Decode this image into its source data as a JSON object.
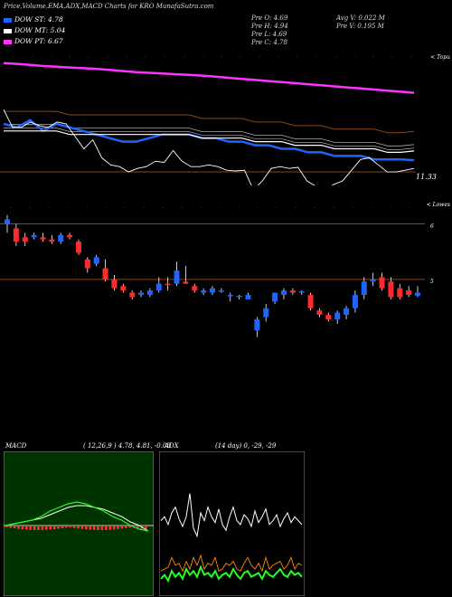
{
  "header": {
    "title": "Price,Volume,EMA,ADX,MACD Charts for KRO MunafaSutra.com",
    "ohlc": [
      "Pre O: 4.69",
      "Pre H: 4.94",
      "Pre L: 4.69",
      "Pre C: 4.78"
    ],
    "volume": [
      "Avg V: 0.022 M",
      "Pre V: 0.195 M"
    ]
  },
  "legend": [
    {
      "label": "DOW ST: 4.78",
      "color": "#1e64ff"
    },
    {
      "label": "DOW MT: 5.04",
      "color": "#ffffff"
    },
    {
      "label": "DOW PT: 6.67",
      "color": "#ff33ff"
    }
  ],
  "colors": {
    "up": "#1e64ff",
    "down": "#ff2a2a",
    "ema_short": "#1e64ff",
    "ema_mid": "#ffffff",
    "ema_long": "#ff33ff",
    "ema_extra": "#8b4513",
    "adx_green": "#22ff22",
    "adx_orange": "#ff8c00",
    "macd_bg": "#003300",
    "macd_red": "#ff3333"
  },
  "panel1": {
    "right_label": "< Topu",
    "price_label": "11.33"
  },
  "panel2": {
    "right_label": "< Lowes",
    "right_ticks": [
      "6",
      "5"
    ]
  },
  "macd": {
    "label": "MACD",
    "params": "( 12,26,9 ) 4.78, 4.81, -0.03"
  },
  "adx": {
    "label": "ADX",
    "params": "(14 day) 0, -29, -29"
  },
  "chart_data": [
    {
      "type": "line",
      "title": "EMA",
      "series": [
        {
          "name": "DOW ST",
          "values": [
            5.8,
            5.7,
            5.9,
            5.6,
            5.8,
            5.7,
            5.6,
            5.5,
            5.4,
            5.3,
            5.3,
            5.4,
            5.5,
            5.5,
            5.5,
            5.4,
            5.4,
            5.3,
            5.3,
            5.2,
            5.2,
            5.1,
            5.1,
            5.0,
            5.0,
            4.9,
            4.9,
            4.9,
            4.8,
            4.8,
            4.8,
            4.78
          ]
        },
        {
          "name": "DOW MT",
          "values": [
            5.6,
            5.6,
            5.6,
            5.6,
            5.6,
            5.5,
            5.5,
            5.5,
            5.5,
            5.5,
            5.5,
            5.5,
            5.5,
            5.5,
            5.5,
            5.4,
            5.4,
            5.4,
            5.4,
            5.3,
            5.3,
            5.3,
            5.2,
            5.2,
            5.2,
            5.1,
            5.1,
            5.1,
            5.1,
            5.0,
            5.0,
            5.04
          ]
        },
        {
          "name": "DOW PT",
          "values": [
            7.5,
            7.48,
            7.45,
            7.42,
            7.4,
            7.38,
            7.36,
            7.34,
            7.31,
            7.28,
            7.25,
            7.23,
            7.21,
            7.19,
            7.17,
            7.15,
            7.12,
            7.09,
            7.06,
            7.03,
            7.0,
            6.97,
            6.94,
            6.91,
            6.88,
            6.85,
            6.82,
            6.79,
            6.76,
            6.73,
            6.7,
            6.67
          ]
        }
      ]
    },
    {
      "type": "bar",
      "title": "Price",
      "candles": [
        {
          "o": 6.1,
          "h": 6.3,
          "l": 5.9,
          "c": 6.2
        },
        {
          "o": 6.0,
          "h": 6.1,
          "l": 5.6,
          "c": 5.7
        },
        {
          "o": 5.8,
          "h": 5.9,
          "l": 5.6,
          "c": 5.7
        },
        {
          "o": 5.8,
          "h": 5.9,
          "l": 5.75,
          "c": 5.85
        },
        {
          "o": 5.8,
          "h": 5.9,
          "l": 5.7,
          "c": 5.75
        },
        {
          "o": 5.75,
          "h": 5.85,
          "l": 5.65,
          "c": 5.7
        },
        {
          "o": 5.7,
          "h": 5.9,
          "l": 5.65,
          "c": 5.85
        },
        {
          "o": 5.85,
          "h": 5.9,
          "l": 5.75,
          "c": 5.8
        },
        {
          "o": 5.7,
          "h": 5.75,
          "l": 5.4,
          "c": 5.45
        },
        {
          "o": 5.3,
          "h": 5.35,
          "l": 5.0,
          "c": 5.1
        },
        {
          "o": 5.2,
          "h": 5.4,
          "l": 5.15,
          "c": 5.35
        },
        {
          "o": 5.1,
          "h": 5.3,
          "l": 4.8,
          "c": 4.85
        },
        {
          "o": 4.85,
          "h": 4.95,
          "l": 4.6,
          "c": 4.65
        },
        {
          "o": 4.7,
          "h": 4.75,
          "l": 4.55,
          "c": 4.6
        },
        {
          "o": 4.55,
          "h": 4.6,
          "l": 4.4,
          "c": 4.45
        },
        {
          "o": 4.5,
          "h": 4.6,
          "l": 4.45,
          "c": 4.55
        },
        {
          "o": 4.5,
          "h": 4.65,
          "l": 4.45,
          "c": 4.6
        },
        {
          "o": 4.6,
          "h": 4.9,
          "l": 4.55,
          "c": 4.75
        },
        {
          "o": 4.75,
          "h": 4.9,
          "l": 4.6,
          "c": 4.72
        },
        {
          "o": 4.75,
          "h": 5.25,
          "l": 4.7,
          "c": 5.05
        },
        {
          "o": 4.8,
          "h": 5.15,
          "l": 4.75,
          "c": 4.75
        },
        {
          "o": 4.7,
          "h": 4.75,
          "l": 4.55,
          "c": 4.6
        },
        {
          "o": 4.55,
          "h": 4.65,
          "l": 4.5,
          "c": 4.6
        },
        {
          "o": 4.55,
          "h": 4.7,
          "l": 4.5,
          "c": 4.65
        },
        {
          "o": 4.6,
          "h": 4.65,
          "l": 4.55,
          "c": 4.6
        },
        {
          "o": 4.5,
          "h": 4.55,
          "l": 4.35,
          "c": 4.5
        },
        {
          "o": 4.45,
          "h": 4.5,
          "l": 4.4,
          "c": 4.48
        },
        {
          "o": 4.4,
          "h": 4.55,
          "l": 4.4,
          "c": 4.5
        },
        {
          "o": 3.7,
          "h": 4.0,
          "l": 3.55,
          "c": 3.95
        },
        {
          "o": 4.0,
          "h": 4.3,
          "l": 3.9,
          "c": 4.2
        },
        {
          "o": 4.35,
          "h": 4.55,
          "l": 4.3,
          "c": 4.55
        },
        {
          "o": 4.5,
          "h": 4.65,
          "l": 4.4,
          "c": 4.6
        },
        {
          "o": 4.6,
          "h": 4.65,
          "l": 4.5,
          "c": 4.55
        },
        {
          "o": 4.55,
          "h": 4.6,
          "l": 4.5,
          "c": 4.58
        },
        {
          "o": 4.5,
          "h": 4.55,
          "l": 4.15,
          "c": 4.2
        },
        {
          "o": 4.15,
          "h": 4.2,
          "l": 4.0,
          "c": 4.05
        },
        {
          "o": 4.05,
          "h": 4.1,
          "l": 3.9,
          "c": 3.95
        },
        {
          "o": 3.95,
          "h": 4.15,
          "l": 3.85,
          "c": 4.1
        },
        {
          "o": 4.05,
          "h": 4.25,
          "l": 3.95,
          "c": 4.2
        },
        {
          "o": 4.2,
          "h": 4.6,
          "l": 4.1,
          "c": 4.5
        },
        {
          "o": 4.5,
          "h": 4.9,
          "l": 4.4,
          "c": 4.8
        },
        {
          "o": 4.8,
          "h": 5.0,
          "l": 4.7,
          "c": 4.85
        },
        {
          "o": 4.9,
          "h": 5.0,
          "l": 4.6,
          "c": 4.65
        },
        {
          "o": 4.8,
          "h": 4.9,
          "l": 4.4,
          "c": 4.45
        },
        {
          "o": 4.65,
          "h": 4.75,
          "l": 4.4,
          "c": 4.45
        },
        {
          "o": 4.6,
          "h": 4.7,
          "l": 4.45,
          "c": 4.5
        },
        {
          "o": 4.48,
          "h": 4.7,
          "l": 4.45,
          "c": 4.55
        }
      ]
    },
    {
      "type": "line",
      "title": "MACD",
      "series": [
        {
          "name": "MACD",
          "values": [
            0,
            0.01,
            0.02,
            0.03,
            0.05,
            0.08,
            0.1,
            0.12,
            0.13,
            0.12,
            0.1,
            0.08,
            0.05,
            0.03,
            0.0,
            -0.02,
            -0.03
          ]
        },
        {
          "name": "Signal",
          "values": [
            0,
            0.01,
            0.02,
            0.03,
            0.04,
            0.06,
            0.08,
            0.1,
            0.11,
            0.11,
            0.1,
            0.09,
            0.07,
            0.05,
            0.02,
            0.0,
            -0.03
          ]
        }
      ]
    },
    {
      "type": "line",
      "title": "ADX",
      "series": [
        {
          "name": "DI",
          "values": [
            38,
            40,
            36,
            42,
            45,
            39,
            35,
            40,
            52,
            34,
            30,
            42,
            38,
            45,
            40,
            37,
            44,
            36,
            33,
            40,
            45,
            38,
            36,
            41,
            39,
            35,
            43,
            37,
            40,
            44,
            36,
            38,
            41,
            35,
            39,
            42,
            37,
            40,
            38,
            36
          ]
        },
        {
          "name": "ADX",
          "values": [
            8,
            10,
            7,
            12,
            9,
            11,
            8,
            13,
            10,
            12,
            9,
            14,
            10,
            11,
            9,
            12,
            8,
            10,
            11,
            9,
            13,
            10,
            8,
            11,
            12,
            9,
            10,
            11,
            8,
            12,
            10,
            9,
            11,
            13,
            10,
            9,
            12,
            10,
            11,
            9
          ]
        }
      ]
    }
  ]
}
